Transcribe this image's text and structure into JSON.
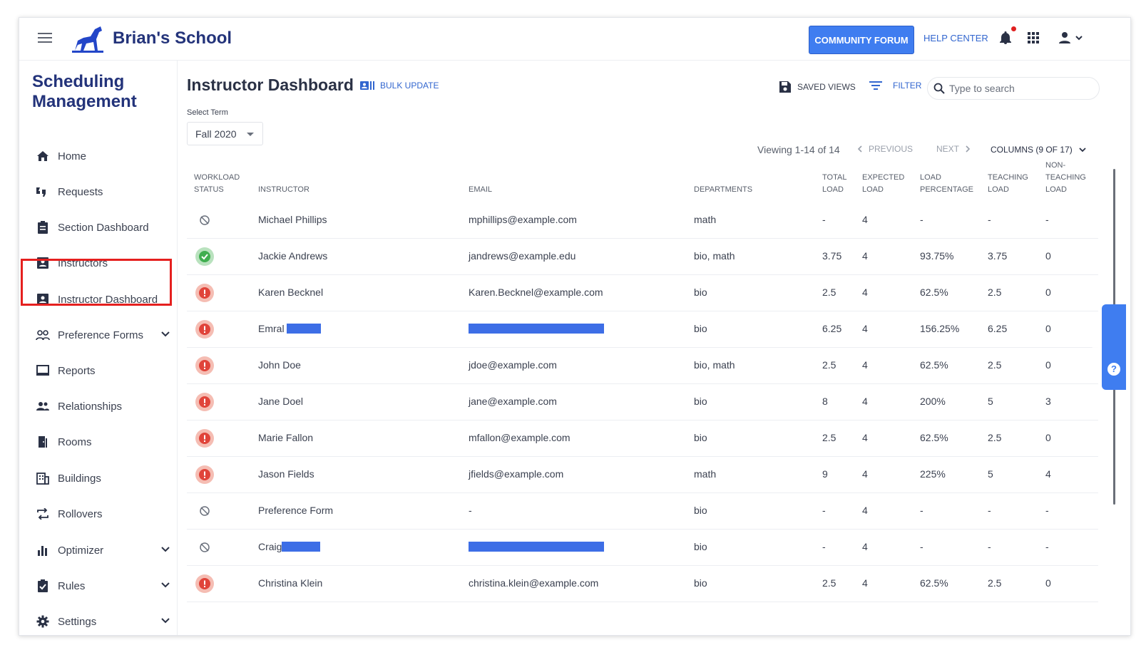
{
  "app": {
    "brand": "Brian's School"
  },
  "topbar": {
    "community_forum": "COMMUNITY FORUM",
    "help_center": "HELP CENTER",
    "icons": [
      "menu-icon",
      "bell-icon",
      "apps-grid-icon",
      "account-icon"
    ]
  },
  "sidebar": {
    "title": "Scheduling Management",
    "items": [
      {
        "label": "Home",
        "icon": "home-icon"
      },
      {
        "label": "Requests",
        "icon": "requests-icon"
      },
      {
        "label": "Section Dashboard",
        "icon": "clipboard-icon"
      },
      {
        "label": "Instructors",
        "icon": "person-badge-icon"
      },
      {
        "label": "Instructor Dashboard",
        "icon": "person-badge-icon",
        "selected": true
      },
      {
        "label": "Preference Forms",
        "icon": "people-icon",
        "expandable": true
      },
      {
        "label": "Reports",
        "icon": "reports-icon"
      },
      {
        "label": "Relationships",
        "icon": "group-icon"
      },
      {
        "label": "Rooms",
        "icon": "door-icon"
      },
      {
        "label": "Buildings",
        "icon": "building-icon"
      },
      {
        "label": "Rollovers",
        "icon": "rollover-icon"
      },
      {
        "label": "Optimizer",
        "icon": "bar-chart-icon",
        "expandable": true
      },
      {
        "label": "Rules",
        "icon": "checklist-icon",
        "expandable": true
      },
      {
        "label": "Settings",
        "icon": "gear-icon",
        "expandable": true
      }
    ]
  },
  "main": {
    "title": "Instructor Dashboard",
    "bulk_update": "BULK UPDATE",
    "saved_views": "SAVED VIEWS",
    "filter": "FILTER",
    "search_placeholder": "Type to search",
    "term_label": "Select Term",
    "term_value": "Fall 2020",
    "viewing": "Viewing 1-14 of 14",
    "previous": "PREVIOUS",
    "next": "NEXT",
    "columns": "COLUMNS (9 OF 17)"
  },
  "table": {
    "headers": {
      "status": [
        "WORKLOAD",
        "STATUS"
      ],
      "instructor": "INSTRUCTOR",
      "email": "EMAIL",
      "departments": "DEPARTMENTS",
      "total": [
        "TOTAL",
        "LOAD"
      ],
      "expected": [
        "EXPECTED",
        "LOAD"
      ],
      "pct": [
        "LOAD",
        "PERCENTAGE"
      ],
      "teaching": [
        "TEACHING",
        "LOAD"
      ],
      "nonteaching": [
        "NON-",
        "TEACHING",
        "LOAD"
      ]
    },
    "rows": [
      {
        "status": "none",
        "name": "Michael Phillips",
        "email": "mphillips@example.com",
        "dept": "math",
        "total": "-",
        "expected": "4",
        "pct": "-",
        "teaching": "-",
        "nonteaching": "-"
      },
      {
        "status": "ok",
        "name": "Jackie Andrews",
        "email": "jandrews@example.edu",
        "dept": "bio, math",
        "total": "3.75",
        "expected": "4",
        "pct": "93.75%",
        "teaching": "3.75",
        "nonteaching": "0"
      },
      {
        "status": "warn",
        "name": "Karen Becknel",
        "email": "Karen.Becknel@example.com",
        "dept": "bio",
        "total": "2.5",
        "expected": "4",
        "pct": "62.5%",
        "teaching": "2.5",
        "nonteaching": "0"
      },
      {
        "status": "warn",
        "name": "Emral",
        "name_redacted": true,
        "email": "",
        "email_redacted": true,
        "dept": "bio",
        "total": "6.25",
        "expected": "4",
        "pct": "156.25%",
        "teaching": "6.25",
        "nonteaching": "0"
      },
      {
        "status": "warn",
        "name": "John Doe",
        "email": "jdoe@example.com",
        "dept": "bio, math",
        "total": "2.5",
        "expected": "4",
        "pct": "62.5%",
        "teaching": "2.5",
        "nonteaching": "0"
      },
      {
        "status": "warn",
        "name": "Jane Doel",
        "email": "jane@example.com",
        "dept": "bio",
        "total": "8",
        "expected": "4",
        "pct": "200%",
        "teaching": "5",
        "nonteaching": "3"
      },
      {
        "status": "warn",
        "name": "Marie Fallon",
        "email": "mfallon@example.com",
        "dept": "bio",
        "total": "2.5",
        "expected": "4",
        "pct": "62.5%",
        "teaching": "2.5",
        "nonteaching": "0"
      },
      {
        "status": "warn",
        "name": "Jason Fields",
        "email": "jfields@example.com",
        "dept": "math",
        "total": "9",
        "expected": "4",
        "pct": "225%",
        "teaching": "5",
        "nonteaching": "4"
      },
      {
        "status": "none",
        "name": "Preference Form",
        "email": "-",
        "dept": "bio",
        "total": "-",
        "expected": "4",
        "pct": "-",
        "teaching": "-",
        "nonteaching": "-"
      },
      {
        "status": "none",
        "name": "Craig",
        "name_redacted": true,
        "email": "",
        "email_redacted": true,
        "dept": "bio",
        "total": "-",
        "expected": "4",
        "pct": "-",
        "teaching": "-",
        "nonteaching": "-"
      },
      {
        "status": "warn",
        "name": "Christina Klein",
        "email": "christina.klein@example.com",
        "dept": "bio",
        "total": "2.5",
        "expected": "4",
        "pct": "62.5%",
        "teaching": "2.5",
        "nonteaching": "0"
      }
    ]
  },
  "self_help": "Self Help",
  "colors": {
    "brand": "#23337a",
    "accent": "#3f7df0",
    "ok": "#3fae4f",
    "warn": "#e0443a",
    "highlight": "#e5201f"
  }
}
